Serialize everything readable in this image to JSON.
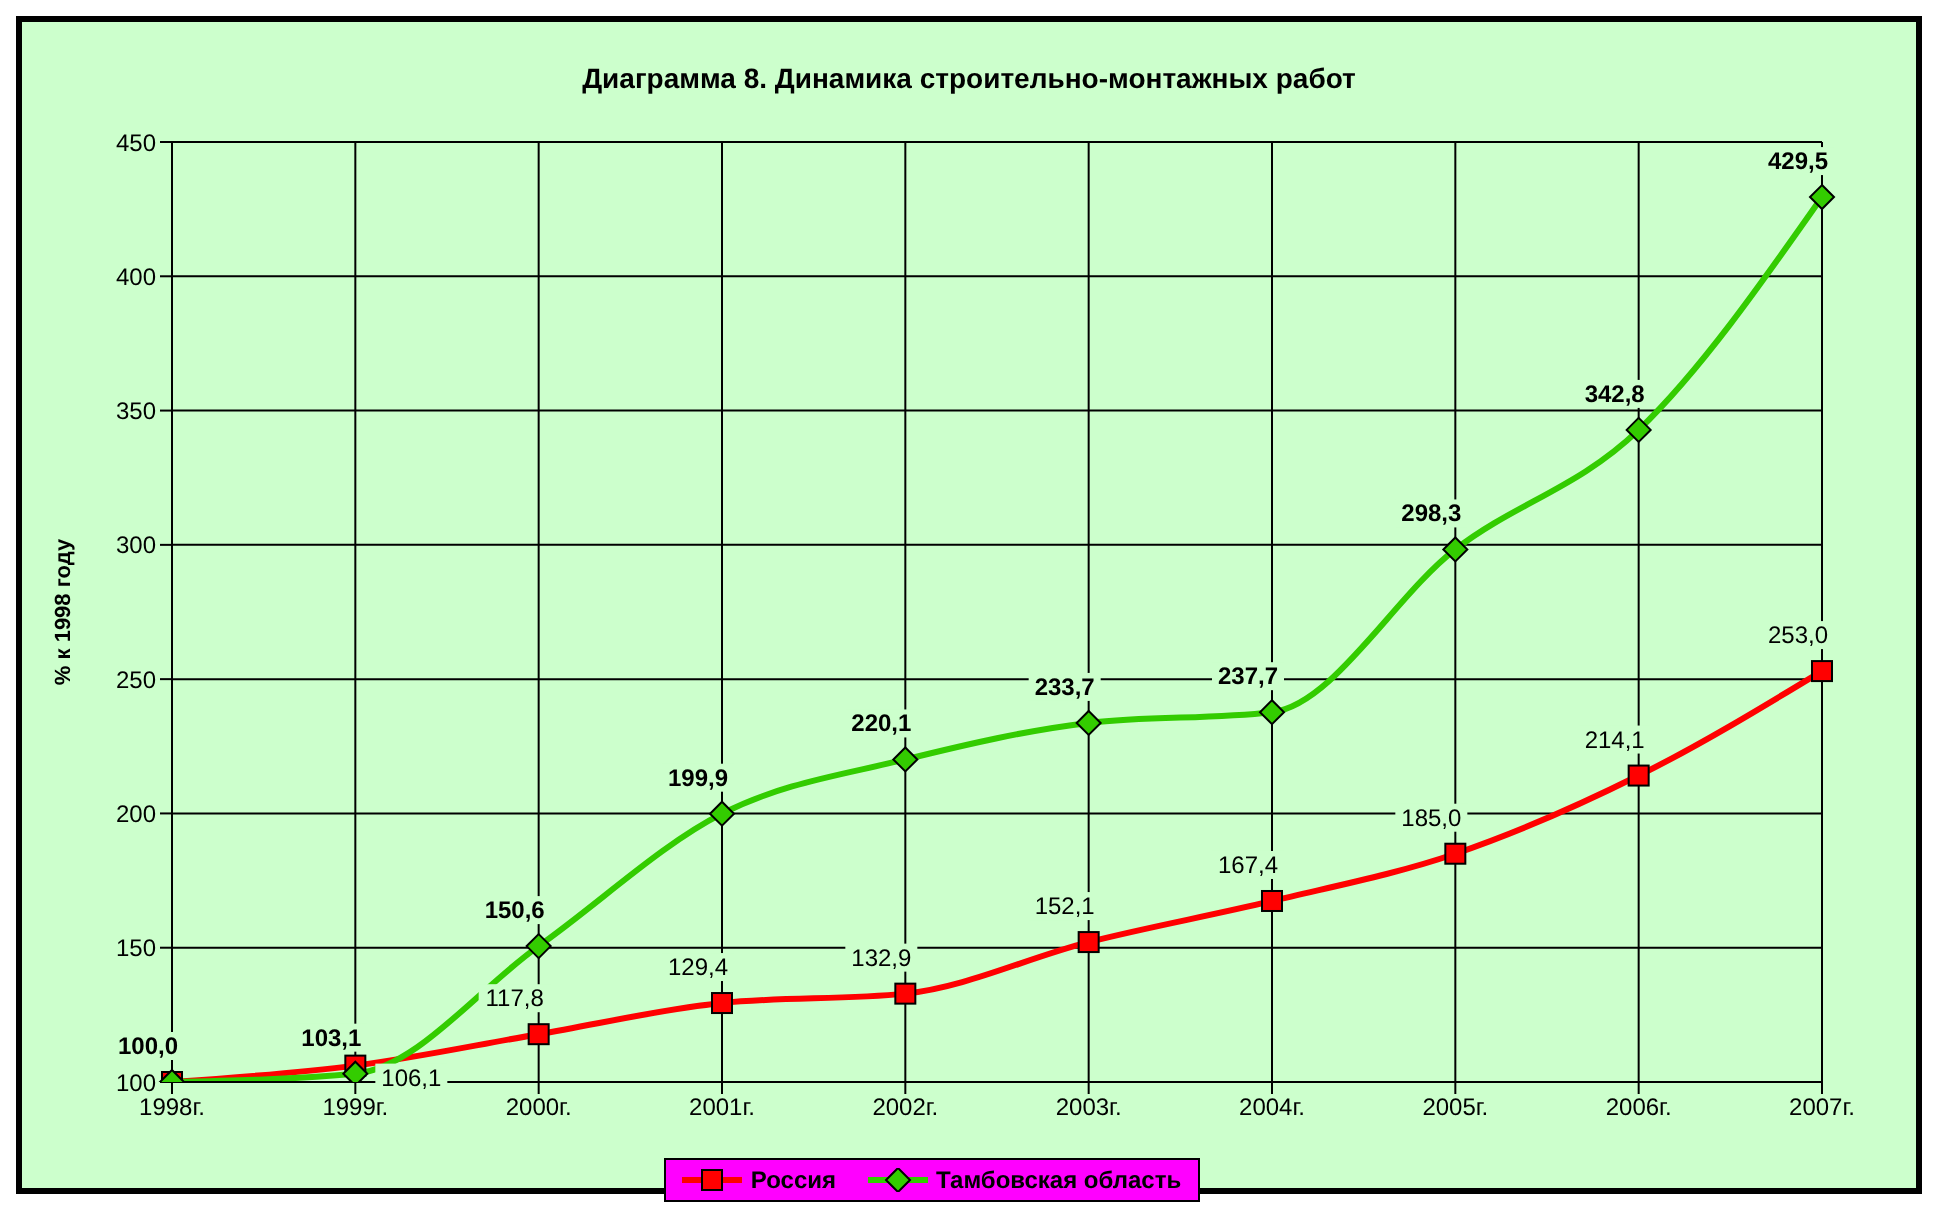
{
  "chart_data": {
    "type": "line",
    "title": "Диаграмма 8. Динамика строительно-монтажных работ",
    "ylabel": "% к 1998 году",
    "categories": [
      "1998г.",
      "1999г.",
      "2000г.",
      "2001г.",
      "2002г.",
      "2003г.",
      "2004г.",
      "2005г.",
      "2006г.",
      "2007г."
    ],
    "series": [
      {
        "name": "Россия",
        "color": "#ff0000",
        "marker": "square",
        "values": [
          100.0,
          106.1,
          117.8,
          129.4,
          132.9,
          152.1,
          167.4,
          185.0,
          214.1,
          253.0
        ],
        "value_labels": [
          null,
          "106,1",
          "117,8",
          "129,4",
          "132,9",
          "152,1",
          "167,4",
          "185,0",
          "214,1",
          "253,0"
        ]
      },
      {
        "name": "Тамбовская область",
        "color": "#33cc00",
        "marker": "diamond",
        "values": [
          100.0,
          103.1,
          150.6,
          199.9,
          220.1,
          233.7,
          237.7,
          298.3,
          342.8,
          429.5
        ],
        "value_labels": [
          "100,0",
          "103,1",
          "150,6",
          "199,9",
          "220,1",
          "233,7",
          "237,7",
          "298,3",
          "342,8",
          "429,5"
        ]
      }
    ],
    "ylim": [
      100,
      450
    ],
    "yticks": [
      100,
      150,
      200,
      250,
      300,
      350,
      400,
      450
    ],
    "grid": true,
    "legend": "bottom"
  }
}
